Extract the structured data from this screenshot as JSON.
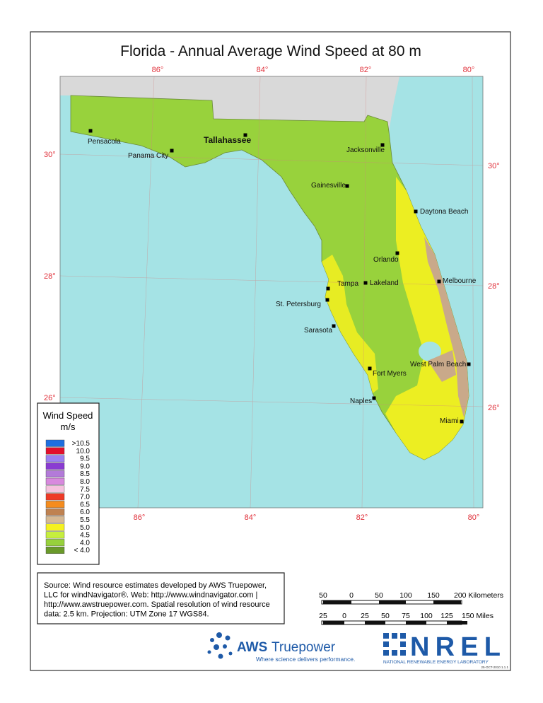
{
  "title": "Florida - Annual Average Wind Speed at 80 m",
  "graticule": {
    "lon_top": [
      "86°",
      "84°",
      "82°",
      "80°"
    ],
    "lon_bottom": [
      "86°",
      "84°",
      "82°",
      "80°"
    ],
    "lat_left": [
      "30°",
      "28°",
      "26°"
    ],
    "lat_right": [
      "30°",
      "28°",
      "26°"
    ]
  },
  "cities": [
    {
      "name": "Pensacola"
    },
    {
      "name": "Panama City"
    },
    {
      "name": "Tallahassee"
    },
    {
      "name": "Jacksonville"
    },
    {
      "name": "Gainesville"
    },
    {
      "name": "Daytona Beach"
    },
    {
      "name": "Orlando"
    },
    {
      "name": "Melbourne"
    },
    {
      "name": "Tampa"
    },
    {
      "name": "Lakeland"
    },
    {
      "name": "St. Petersburg"
    },
    {
      "name": "Sarasota"
    },
    {
      "name": "West Palm Beach"
    },
    {
      "name": "Fort Myers"
    },
    {
      "name": "Naples"
    },
    {
      "name": "Miami"
    }
  ],
  "legend": {
    "title": "Wind Speed",
    "unit": "m/s",
    "entries": [
      {
        "label": ">10.5",
        "color": "#1f6fe0"
      },
      {
        "label": "10.0",
        "color": "#e2102c"
      },
      {
        "label": "9.5",
        "color": "#9c80f2"
      },
      {
        "label": "9.0",
        "color": "#8a3bd2"
      },
      {
        "label": "8.5",
        "color": "#b37ad9"
      },
      {
        "label": "8.0",
        "color": "#d889de"
      },
      {
        "label": "7.5",
        "color": "#f6c2de"
      },
      {
        "label": "7.0",
        "color": "#ee3a26"
      },
      {
        "label": "6.5",
        "color": "#f58c1e"
      },
      {
        "label": "6.0",
        "color": "#bf8251"
      },
      {
        "label": "5.5",
        "color": "#d6b994"
      },
      {
        "label": "5.0",
        "color": "#f5f11f"
      },
      {
        "label": "4.5",
        "color": "#c6ee3e"
      },
      {
        "label": "4.0",
        "color": "#97d13c"
      },
      {
        "label": "< 4.0",
        "color": "#6a9a2a"
      }
    ]
  },
  "source_lines": [
    "Source: Wind resource estimates developed by AWS Truepower,",
    "LLC for windNavigator®. Web: http://www.windnavigator.com |",
    "http://www.awstruepower.com. Spatial resolution of wind resource",
    "data: 2.5 km. Projection: UTM Zone 17 WGS84."
  ],
  "scale": {
    "km": [
      "50",
      "0",
      "50",
      "100",
      "150",
      "200 Kilometers"
    ],
    "miles": [
      "25",
      "0",
      "25",
      "50",
      "75",
      "100",
      "125",
      "150 Miles"
    ]
  },
  "logos": {
    "aws_a": "AWS",
    "aws_b": "Truepower",
    "aws_tagline": "Where science delivers performance.",
    "nrel": "NREL",
    "nrel_sub": "NATIONAL RENEWABLE ENERGY LABORATORY",
    "stamp": "25-OCT-2010 1.1.1"
  }
}
